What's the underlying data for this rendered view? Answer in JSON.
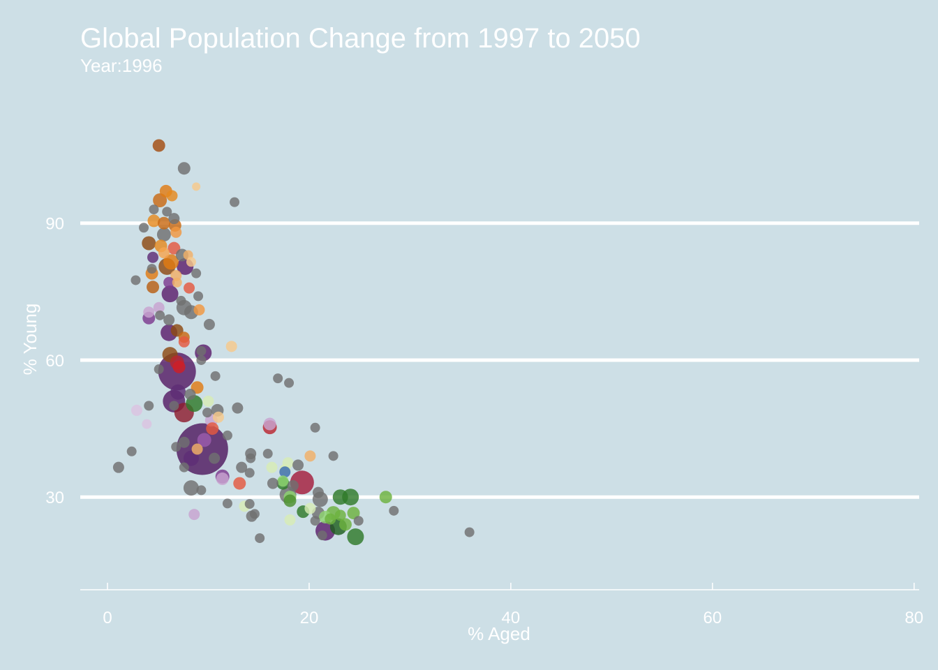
{
  "chart_data": {
    "type": "scatter",
    "title": "Global Population Change from 1997 to 2050",
    "subtitle": "Year:1996",
    "xlabel": "% Aged",
    "ylabel": "% Young",
    "xlim": [
      -2.7,
      80.5
    ],
    "ylim": [
      9.7,
      119
    ],
    "xticks": [
      0,
      20,
      40,
      60,
      80
    ],
    "yticks": [
      30,
      60,
      90
    ],
    "grid": "horizontal",
    "legend": "none",
    "size_encoding": "population",
    "points": [
      {
        "x": 5.1,
        "y": 107,
        "s": 9,
        "c": "#a34d10"
      },
      {
        "x": 7.6,
        "y": 102,
        "s": 9,
        "c": "#707070"
      },
      {
        "x": 8.8,
        "y": 98,
        "s": 6,
        "c": "#f6c98b"
      },
      {
        "x": 5.8,
        "y": 97,
        "s": 9,
        "c": "#e07b12"
      },
      {
        "x": 6.4,
        "y": 96,
        "s": 8,
        "c": "#e58a1e"
      },
      {
        "x": 5.2,
        "y": 95,
        "s": 10,
        "c": "#c96a14"
      },
      {
        "x": 12.6,
        "y": 94.6,
        "s": 7,
        "c": "#707070"
      },
      {
        "x": 4.6,
        "y": 93,
        "s": 7,
        "c": "#707070"
      },
      {
        "x": 5.9,
        "y": 92.5,
        "s": 7,
        "c": "#707070"
      },
      {
        "x": 6.6,
        "y": 91,
        "s": 8,
        "c": "#707070"
      },
      {
        "x": 4.6,
        "y": 90.5,
        "s": 9,
        "c": "#e58a1e"
      },
      {
        "x": 5.6,
        "y": 90,
        "s": 9,
        "c": "#c96a14"
      },
      {
        "x": 6.7,
        "y": 89.5,
        "s": 9,
        "c": "#c96a14"
      },
      {
        "x": 3.6,
        "y": 89,
        "s": 7,
        "c": "#707070"
      },
      {
        "x": 6.8,
        "y": 88,
        "s": 8,
        "c": "#f2973f"
      },
      {
        "x": 5.6,
        "y": 87.5,
        "s": 10,
        "c": "#707070"
      },
      {
        "x": 4.1,
        "y": 85.6,
        "s": 10,
        "c": "#8e4a12"
      },
      {
        "x": 5.3,
        "y": 85,
        "s": 9,
        "c": "#e58a1e"
      },
      {
        "x": 6.6,
        "y": 84.5,
        "s": 9,
        "c": "#e4593f"
      },
      {
        "x": 5.6,
        "y": 83.5,
        "s": 8,
        "c": "#f5a54f"
      },
      {
        "x": 7.4,
        "y": 83,
        "s": 9,
        "c": "#707070"
      },
      {
        "x": 8.0,
        "y": 83,
        "s": 7,
        "c": "#f2b066"
      },
      {
        "x": 4.5,
        "y": 82.5,
        "s": 8,
        "c": "#5e2d75"
      },
      {
        "x": 6.3,
        "y": 81.5,
        "s": 11,
        "c": "#e07b12"
      },
      {
        "x": 8.3,
        "y": 81.5,
        "s": 7,
        "c": "#f6c98b"
      },
      {
        "x": 5.9,
        "y": 80.5,
        "s": 12,
        "c": "#8e4a12"
      },
      {
        "x": 7.7,
        "y": 80.5,
        "s": 12,
        "c": "#5b1f6b"
      },
      {
        "x": 4.4,
        "y": 80,
        "s": 7,
        "c": "#707070"
      },
      {
        "x": 4.4,
        "y": 79,
        "s": 9,
        "c": "#e07b12"
      },
      {
        "x": 8.8,
        "y": 79,
        "s": 7,
        "c": "#707070"
      },
      {
        "x": 6.8,
        "y": 78.5,
        "s": 8,
        "c": "#f2b066"
      },
      {
        "x": 2.8,
        "y": 77.5,
        "s": 7,
        "c": "#707070"
      },
      {
        "x": 6.1,
        "y": 77,
        "s": 8,
        "c": "#7d3b8f"
      },
      {
        "x": 6.9,
        "y": 77,
        "s": 7,
        "c": "#f2b066"
      },
      {
        "x": 4.5,
        "y": 76,
        "s": 9,
        "c": "#b85f12"
      },
      {
        "x": 8.1,
        "y": 75.8,
        "s": 8,
        "c": "#e4593f"
      },
      {
        "x": 6.2,
        "y": 74.5,
        "s": 12,
        "c": "#5b1f6b"
      },
      {
        "x": 9.0,
        "y": 74,
        "s": 7,
        "c": "#707070"
      },
      {
        "x": 7.3,
        "y": 73,
        "s": 7,
        "c": "#707070"
      },
      {
        "x": 5.1,
        "y": 71.5,
        "s": 8,
        "c": "#c8a3d0"
      },
      {
        "x": 7.6,
        "y": 71.5,
        "s": 11,
        "c": "#707070"
      },
      {
        "x": 9.1,
        "y": 71,
        "s": 8,
        "c": "#f2973f"
      },
      {
        "x": 8.3,
        "y": 70.5,
        "s": 10,
        "c": "#707070"
      },
      {
        "x": 4.1,
        "y": 70.5,
        "s": 8,
        "c": "#c8a3d0"
      },
      {
        "x": 5.2,
        "y": 69.8,
        "s": 7,
        "c": "#707070"
      },
      {
        "x": 4.1,
        "y": 69.2,
        "s": 9,
        "c": "#7d3b8f"
      },
      {
        "x": 6.1,
        "y": 68.8,
        "s": 8,
        "c": "#707070"
      },
      {
        "x": 10.1,
        "y": 67.8,
        "s": 8,
        "c": "#707070"
      },
      {
        "x": 6.9,
        "y": 66.5,
        "s": 9,
        "c": "#8e4a12"
      },
      {
        "x": 6.1,
        "y": 66,
        "s": 12,
        "c": "#5b1f6b"
      },
      {
        "x": 7.6,
        "y": 65,
        "s": 8,
        "c": "#c96a14"
      },
      {
        "x": 7.6,
        "y": 64,
        "s": 8,
        "c": "#e4593f"
      },
      {
        "x": 12.3,
        "y": 63,
        "s": 8,
        "c": "#f6c98b"
      },
      {
        "x": 9.3,
        "y": 62,
        "s": 7,
        "c": "#707070"
      },
      {
        "x": 6.2,
        "y": 61.2,
        "s": 11,
        "c": "#8e4a12"
      },
      {
        "x": 9.5,
        "y": 61.6,
        "s": 12,
        "c": "#5b1f6b"
      },
      {
        "x": 9.3,
        "y": 60,
        "s": 7,
        "c": "#707070"
      },
      {
        "x": 6.9,
        "y": 59.5,
        "s": 10,
        "c": "#b9262f"
      },
      {
        "x": 5.1,
        "y": 58,
        "s": 7,
        "c": "#707070"
      },
      {
        "x": 6.9,
        "y": 57.5,
        "s": 27,
        "c": "#561c64"
      },
      {
        "x": 7.1,
        "y": 58.5,
        "s": 9,
        "c": "#d01f26"
      },
      {
        "x": 10.7,
        "y": 56.5,
        "s": 7,
        "c": "#707070"
      },
      {
        "x": 16.9,
        "y": 56,
        "s": 7,
        "c": "#707070"
      },
      {
        "x": 18.0,
        "y": 55,
        "s": 7,
        "c": "#707070"
      },
      {
        "x": 8.9,
        "y": 54,
        "s": 9,
        "c": "#e07b12"
      },
      {
        "x": 7.0,
        "y": 53,
        "s": 11,
        "c": "#5e2d75"
      },
      {
        "x": 8.2,
        "y": 52.5,
        "s": 8,
        "c": "#707070"
      },
      {
        "x": 6.6,
        "y": 51,
        "s": 16,
        "c": "#561c64"
      },
      {
        "x": 10.0,
        "y": 51,
        "s": 8,
        "c": "#d8edb5"
      },
      {
        "x": 8.6,
        "y": 50.5,
        "s": 12,
        "c": "#2f7a2a"
      },
      {
        "x": 4.1,
        "y": 50,
        "s": 7,
        "c": "#707070"
      },
      {
        "x": 6.6,
        "y": 50,
        "s": 7,
        "c": "#707070"
      },
      {
        "x": 12.9,
        "y": 49.5,
        "s": 8,
        "c": "#707070"
      },
      {
        "x": 2.9,
        "y": 49,
        "s": 8,
        "c": "#dcc3e0"
      },
      {
        "x": 10.9,
        "y": 49,
        "s": 9,
        "c": "#707070"
      },
      {
        "x": 7.6,
        "y": 48.5,
        "s": 14,
        "c": "#8e1d2e"
      },
      {
        "x": 9.9,
        "y": 48.5,
        "s": 7,
        "c": "#707070"
      },
      {
        "x": 11.0,
        "y": 47.5,
        "s": 8,
        "c": "#f6c98b"
      },
      {
        "x": 10.3,
        "y": 46.8,
        "s": 9,
        "c": "#c8a3d0"
      },
      {
        "x": 3.9,
        "y": 46,
        "s": 7,
        "c": "#dcc3e0"
      },
      {
        "x": 16.1,
        "y": 46,
        "s": 9,
        "c": "#c8a3d0"
      },
      {
        "x": 16.1,
        "y": 45.3,
        "s": 10,
        "c": "#b9262f"
      },
      {
        "x": 20.6,
        "y": 45.2,
        "s": 7,
        "c": "#707070"
      },
      {
        "x": 10.4,
        "y": 45,
        "s": 9,
        "c": "#e4593f"
      },
      {
        "x": 11.9,
        "y": 43.5,
        "s": 7,
        "c": "#707070"
      },
      {
        "x": 9.6,
        "y": 42.5,
        "s": 10,
        "c": "#9b5cac"
      },
      {
        "x": 7.6,
        "y": 42,
        "s": 8,
        "c": "#707070"
      },
      {
        "x": 6.8,
        "y": 41,
        "s": 7,
        "c": "#707070"
      },
      {
        "x": 8.9,
        "y": 40.5,
        "s": 8,
        "c": "#f2b066"
      },
      {
        "x": 9.4,
        "y": 40.5,
        "s": 37,
        "c": "#4f1a5f"
      },
      {
        "x": 2.4,
        "y": 40,
        "s": 7,
        "c": "#707070"
      },
      {
        "x": 14.2,
        "y": 39.5,
        "s": 8,
        "c": "#707070"
      },
      {
        "x": 15.9,
        "y": 39.5,
        "s": 7,
        "c": "#707070"
      },
      {
        "x": 20.1,
        "y": 39,
        "s": 8,
        "c": "#f2b066"
      },
      {
        "x": 22.4,
        "y": 39,
        "s": 7,
        "c": "#707070"
      },
      {
        "x": 8.3,
        "y": 38.5,
        "s": 11,
        "c": "#5e2d75"
      },
      {
        "x": 14.2,
        "y": 38.5,
        "s": 7,
        "c": "#707070"
      },
      {
        "x": 10.6,
        "y": 38.5,
        "s": 8,
        "c": "#707070"
      },
      {
        "x": 17.9,
        "y": 37.5,
        "s": 8,
        "c": "#d8edb5"
      },
      {
        "x": 18.9,
        "y": 37,
        "s": 8,
        "c": "#707070"
      },
      {
        "x": 1.1,
        "y": 36.5,
        "s": 8,
        "c": "#707070"
      },
      {
        "x": 7.6,
        "y": 36.5,
        "s": 7,
        "c": "#707070"
      },
      {
        "x": 13.3,
        "y": 36.5,
        "s": 8,
        "c": "#707070"
      },
      {
        "x": 16.3,
        "y": 36.5,
        "s": 8,
        "c": "#d8edb5"
      },
      {
        "x": 17.6,
        "y": 36,
        "s": 8,
        "c": "#d8edb5"
      },
      {
        "x": 17.6,
        "y": 35.5,
        "s": 8,
        "c": "#3b6db0"
      },
      {
        "x": 14.1,
        "y": 35.3,
        "s": 7,
        "c": "#707070"
      },
      {
        "x": 11.4,
        "y": 34.5,
        "s": 10,
        "c": "#7d3b8f"
      },
      {
        "x": 11.4,
        "y": 34,
        "s": 9,
        "c": "#c8a3d0"
      },
      {
        "x": 17.4,
        "y": 33.5,
        "s": 8,
        "c": "#8fd470"
      },
      {
        "x": 19.3,
        "y": 33.2,
        "s": 17,
        "c": "#a51d3c"
      },
      {
        "x": 16.4,
        "y": 33,
        "s": 8,
        "c": "#707070"
      },
      {
        "x": 17.4,
        "y": 33,
        "s": 9,
        "c": "#2f7a2a"
      },
      {
        "x": 13.1,
        "y": 33,
        "s": 9,
        "c": "#e4593f"
      },
      {
        "x": 18.4,
        "y": 32.5,
        "s": 8,
        "c": "#707070"
      },
      {
        "x": 8.3,
        "y": 32,
        "s": 11,
        "c": "#707070"
      },
      {
        "x": 9.3,
        "y": 31.5,
        "s": 7,
        "c": "#707070"
      },
      {
        "x": 20.9,
        "y": 31,
        "s": 8,
        "c": "#707070"
      },
      {
        "x": 17.9,
        "y": 30.5,
        "s": 12,
        "c": "#707070"
      },
      {
        "x": 18.1,
        "y": 30,
        "s": 9,
        "c": "#8fd470"
      },
      {
        "x": 23.1,
        "y": 30,
        "s": 11,
        "c": "#2f7a2a"
      },
      {
        "x": 24.1,
        "y": 30,
        "s": 12,
        "c": "#2f7a2a"
      },
      {
        "x": 27.6,
        "y": 30,
        "s": 9,
        "c": "#6cb23e"
      },
      {
        "x": 21.1,
        "y": 29.5,
        "s": 11,
        "c": "#707070"
      },
      {
        "x": 18.1,
        "y": 29.2,
        "s": 9,
        "c": "#4c8f2e"
      },
      {
        "x": 11.9,
        "y": 28.6,
        "s": 7,
        "c": "#707070"
      },
      {
        "x": 14.1,
        "y": 28.5,
        "s": 7,
        "c": "#707070"
      },
      {
        "x": 13.6,
        "y": 28,
        "s": 8,
        "c": "#d8edb5"
      },
      {
        "x": 20.1,
        "y": 27.5,
        "s": 8,
        "c": "#d8edb5"
      },
      {
        "x": 28.4,
        "y": 27,
        "s": 7,
        "c": "#707070"
      },
      {
        "x": 19.4,
        "y": 26.8,
        "s": 9,
        "c": "#2f7a2a"
      },
      {
        "x": 20.9,
        "y": 26.5,
        "s": 9,
        "c": "#707070"
      },
      {
        "x": 22.4,
        "y": 26.5,
        "s": 10,
        "c": "#6cb23e"
      },
      {
        "x": 24.4,
        "y": 26.5,
        "s": 9,
        "c": "#6cb23e"
      },
      {
        "x": 14.6,
        "y": 26.3,
        "s": 7,
        "c": "#707070"
      },
      {
        "x": 8.6,
        "y": 26.2,
        "s": 8,
        "c": "#c8a3d0"
      },
      {
        "x": 23.1,
        "y": 26,
        "s": 8,
        "c": "#6cb23e"
      },
      {
        "x": 14.3,
        "y": 25.8,
        "s": 8,
        "c": "#707070"
      },
      {
        "x": 21.6,
        "y": 25.6,
        "s": 9,
        "c": "#8fd470"
      },
      {
        "x": 22.1,
        "y": 25.2,
        "s": 8,
        "c": "#6cb23e"
      },
      {
        "x": 18.1,
        "y": 25,
        "s": 8,
        "c": "#d8edb5"
      },
      {
        "x": 20.6,
        "y": 24.8,
        "s": 7,
        "c": "#707070"
      },
      {
        "x": 24.9,
        "y": 24.8,
        "s": 7,
        "c": "#707070"
      },
      {
        "x": 23.6,
        "y": 24,
        "s": 9,
        "c": "#6cb23e"
      },
      {
        "x": 22.9,
        "y": 23.5,
        "s": 12,
        "c": "#1e5f1e"
      },
      {
        "x": 21.6,
        "y": 22.6,
        "s": 14,
        "c": "#5b1f6b"
      },
      {
        "x": 35.9,
        "y": 22.3,
        "s": 7,
        "c": "#707070"
      },
      {
        "x": 21.3,
        "y": 21.6,
        "s": 7,
        "c": "#707070"
      },
      {
        "x": 24.6,
        "y": 21.3,
        "s": 12,
        "c": "#2f7a2a"
      },
      {
        "x": 15.1,
        "y": 21,
        "s": 7,
        "c": "#707070"
      }
    ]
  }
}
